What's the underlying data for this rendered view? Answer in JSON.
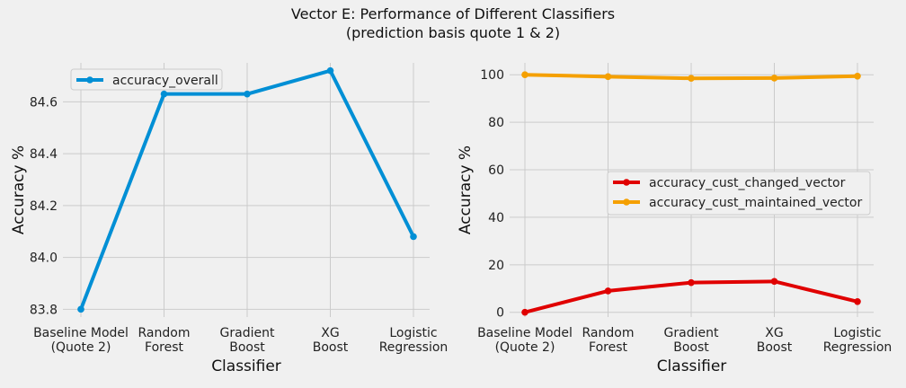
{
  "figure": {
    "title_line1": "Vector E: Performance of Different Classifiers",
    "title_line2": "(prediction basis quote 1 & 2)"
  },
  "colors": {
    "background": "#f0f0f0",
    "grid": "#cbcbcb",
    "blue": "#008fd5",
    "red": "#e00000",
    "orange": "#f5a000"
  },
  "chart_data": [
    {
      "type": "line",
      "categories": [
        [
          "Baseline Model",
          "(Quote 2)"
        ],
        [
          "Random",
          "Forest"
        ],
        [
          "Gradient",
          "Boost"
        ],
        [
          "XG",
          "Boost"
        ],
        [
          "Logistic",
          "Regression"
        ]
      ],
      "series": [
        {
          "name": "accuracy_overall",
          "color": "#008fd5",
          "values": [
            83.8,
            84.63,
            84.63,
            84.72,
            84.08
          ]
        }
      ],
      "xlabel": "Classifier",
      "ylabel": "Accuracy %",
      "ylim": [
        83.77,
        84.75
      ],
      "yticks": [
        83.8,
        84.0,
        84.2,
        84.4,
        84.6
      ],
      "ytick_labels": [
        "83.8",
        "84.0",
        "84.2",
        "84.4",
        "84.6"
      ],
      "grid": true,
      "legend_position": "top-left"
    },
    {
      "type": "line",
      "categories": [
        [
          "Baseline Model",
          "(Quote 2)"
        ],
        [
          "Random",
          "Forest"
        ],
        [
          "Gradient",
          "Boost"
        ],
        [
          "XG",
          "Boost"
        ],
        [
          "Logistic",
          "Regression"
        ]
      ],
      "series": [
        {
          "name": "accuracy_cust_changed_vector",
          "color": "#e00000",
          "values": [
            0,
            9,
            12.5,
            13,
            4.5
          ]
        },
        {
          "name": "accuracy_cust_maintained_vector",
          "color": "#f5a000",
          "values": [
            100,
            99.2,
            98.5,
            98.6,
            99.4
          ]
        }
      ],
      "xlabel": "Classifier",
      "ylabel": "Accuracy %",
      "ylim": [
        -2,
        105
      ],
      "yticks": [
        0,
        20,
        40,
        60,
        80,
        100
      ],
      "ytick_labels": [
        "0",
        "20",
        "40",
        "60",
        "80",
        "100"
      ],
      "grid": true,
      "legend_position": "center-right"
    }
  ]
}
